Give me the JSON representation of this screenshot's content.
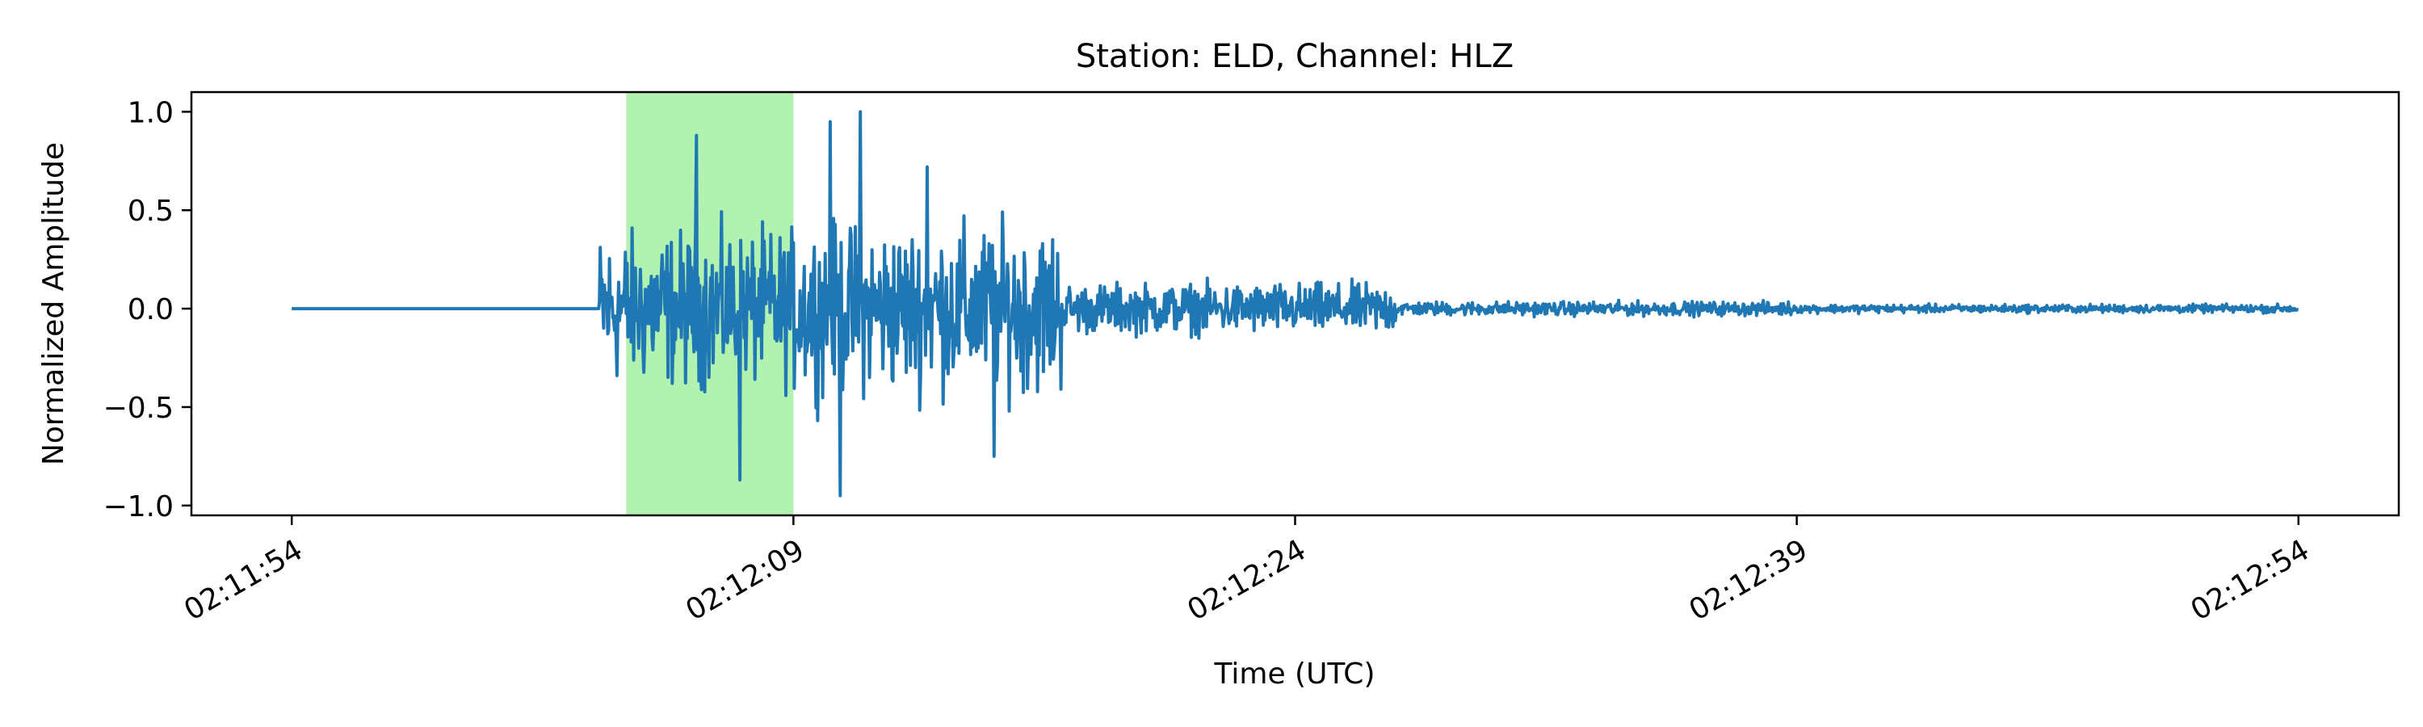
{
  "chart_data": {
    "type": "line",
    "title": "Station: ELD, Channel: HLZ",
    "xlabel": "Time (UTC)",
    "ylabel": "Normalized Amplitude",
    "x_start": "02:11:54",
    "x_end": "02:12:54",
    "xlim_seconds": [
      -3,
      63
    ],
    "ylim": [
      -1.05,
      1.1
    ],
    "x_ticks": [
      {
        "label": "02:11:54",
        "t": 0
      },
      {
        "label": "02:12:09",
        "t": 15
      },
      {
        "label": "02:12:24",
        "t": 30
      },
      {
        "label": "02:12:39",
        "t": 45
      },
      {
        "label": "02:12:54",
        "t": 60
      }
    ],
    "y_ticks": [
      {
        "label": "1.0",
        "v": 1.0
      },
      {
        "label": "0.5",
        "v": 0.5
      },
      {
        "label": "0.0",
        "v": 0.0
      },
      {
        "label": "−0.5",
        "v": -0.5
      },
      {
        "label": "−1.0",
        "v": -1.0
      }
    ],
    "highlight": {
      "t_start": 10.0,
      "t_end": 15.0,
      "color": "#b2f2b0"
    },
    "line_color": "#1f77b4",
    "grid": false,
    "series": [
      {
        "sample_rate_hz": 40,
        "onset_t": 9.2,
        "waveform_segments": [
          {
            "t_start": 0,
            "t_end": 9.2,
            "amp": 0.0
          },
          {
            "t_start": 9.2,
            "t_end": 15.0,
            "amp": 0.55
          },
          {
            "t_start": 15.0,
            "t_end": 23.0,
            "amp": 0.6
          },
          {
            "t_start": 23.0,
            "t_end": 33.0,
            "amp": 0.18
          },
          {
            "t_start": 33.0,
            "t_end": 45.0,
            "amp": 0.05
          },
          {
            "t_start": 45.0,
            "t_end": 60.0,
            "amp": 0.03
          }
        ],
        "peaks": [
          {
            "t": 12.1,
            "v": 0.88
          },
          {
            "t": 13.4,
            "v": -0.87
          },
          {
            "t": 16.1,
            "v": 0.95
          },
          {
            "t": 16.4,
            "v": -0.95
          },
          {
            "t": 17.0,
            "v": 1.0
          },
          {
            "t": 19.0,
            "v": 0.72
          },
          {
            "t": 21.0,
            "v": -0.75
          }
        ]
      }
    ]
  }
}
